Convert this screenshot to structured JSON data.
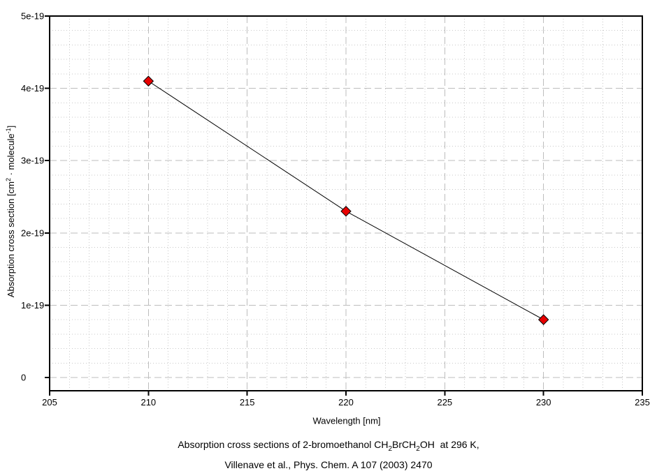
{
  "chart_data": {
    "type": "line",
    "x": [
      210,
      220,
      230
    ],
    "y": [
      4.1e-19,
      2.3e-19,
      8e-20
    ],
    "xlabel": "Wavelength [nm]",
    "ylabel": "Absorption cross section [cm2 · molecule-1]",
    "xlim": [
      205,
      235
    ],
    "ylim": [
      0,
      5e-19
    ],
    "x_major_tick_step": 5,
    "x_minor_tick_step": 1,
    "y_major_tick_step": 1e-19,
    "y_minor_tick_step": 2e-20,
    "x_tick_labels": [
      "205",
      "210",
      "215",
      "220",
      "225",
      "230",
      "235"
    ],
    "y_tick_labels": [
      "0",
      "1e-19",
      "2e-19",
      "3e-19",
      "4e-19",
      "5e-19"
    ],
    "grid": {
      "major_style": "dashed",
      "minor_style": "dotted",
      "major_color": "#bdbdbd",
      "minor_color": "#c8c8c8"
    },
    "legend": "none",
    "marker": {
      "shape": "diamond",
      "fill": "#e80000",
      "stroke": "#000000"
    },
    "line": {
      "color": "#000000",
      "width": 1
    },
    "frame_color": "#000000"
  },
  "axis": {
    "ylabel_pre": "Absorption cross section [cm",
    "ylabel_sup1": "2",
    "ylabel_mid": " · molecule",
    "ylabel_sup2": "-1",
    "ylabel_post": "]"
  },
  "caption": {
    "line1_pre": "Absorption cross sections of 2-bromoethanol CH",
    "line1_sub1": "2",
    "line1_mid": "BrCH",
    "line1_sub2": "2",
    "line1_post": "OH  at 296 K,",
    "line2": "Villenave et al., Phys. Chem. A 107 (2003) 2470"
  }
}
